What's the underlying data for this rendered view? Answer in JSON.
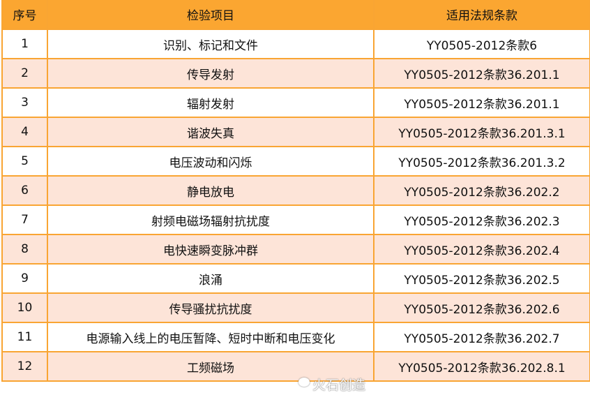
{
  "table": {
    "headers": [
      "序号",
      "检验项目",
      "适用法规条款"
    ],
    "rows": [
      [
        "1",
        "识别、标记和文件",
        "YY0505-2012条款6"
      ],
      [
        "2",
        "传导发射",
        "YY0505-2012条款36.201.1"
      ],
      [
        "3",
        "辐射发射",
        "YY0505-2012条款36.201.1"
      ],
      [
        "4",
        "谐波失真",
        "YY0505-2012条款36.201.3.1"
      ],
      [
        "5",
        "电压波动和闪烁",
        "YY0505-2012条款36.201.3.2"
      ],
      [
        "6",
        "静电放电",
        "YY0505-2012条款36.202.2"
      ],
      [
        "7",
        "射频电磁场辐射抗扰度",
        "YY0505-2012条款36.202.3"
      ],
      [
        "8",
        "电快速瞬变脉冲群",
        "YY0505-2012条款36.202.4"
      ],
      [
        "9",
        "浪涌",
        "YY0505-2012条款36.202.5"
      ],
      [
        "10",
        "传导骚扰抗扰度",
        "YY0505-2012条款36.202.6"
      ],
      [
        "11",
        "电源输入线上的电压暂降、短时中断和电压变化",
        "YY0505-2012条款36.202.7"
      ],
      [
        "12",
        "工频磁场",
        "YY0505-2012条款36.202.8.1"
      ]
    ]
  },
  "watermark": "火石创造",
  "colors": {
    "header": "#FBA631",
    "alt_row": "#FDE4D8",
    "border": "#F9A533"
  }
}
